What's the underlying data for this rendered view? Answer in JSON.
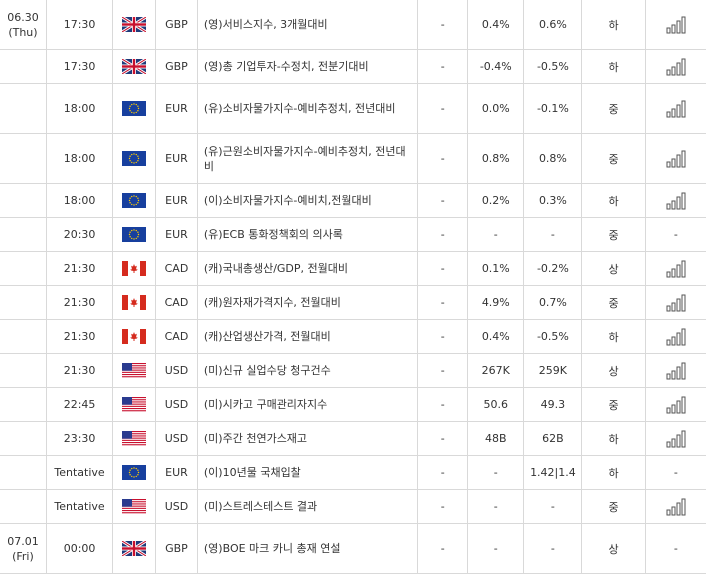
{
  "rows": [
    {
      "date": "06.30\n(Thu)",
      "time": "17:30",
      "flag": "uk-flag-icon",
      "currency": "GBP",
      "event": "(영)서비스지수, 3개월대비",
      "actual": "-",
      "forecast": "0.4%",
      "previous": "0.6%",
      "importance": "하",
      "chart": "bar-chart-icon",
      "h": 50
    },
    {
      "date": "",
      "time": "17:30",
      "flag": "uk-flag-icon",
      "currency": "GBP",
      "event": "(영)총 기업투자-수정치, 전분기대비",
      "actual": "-",
      "forecast": "-0.4%",
      "previous": "-0.5%",
      "importance": "하",
      "chart": "bar-chart-icon",
      "h": 34
    },
    {
      "date": "",
      "time": "18:00",
      "flag": "eu-flag-icon",
      "currency": "EUR",
      "event": "(유)소비자물가지수-예비추정치, 전년대비",
      "actual": "-",
      "forecast": "0.0%",
      "previous": "-0.1%",
      "importance": "중",
      "chart": "bar-chart-icon",
      "h": 50
    },
    {
      "date": "",
      "time": "18:00",
      "flag": "eu-flag-icon",
      "currency": "EUR",
      "event": "(유)근원소비자물가지수-예비추정치, 전년대비",
      "actual": "-",
      "forecast": "0.8%",
      "previous": "0.8%",
      "importance": "중",
      "chart": "bar-chart-icon",
      "h": 50
    },
    {
      "date": "",
      "time": "18:00",
      "flag": "eu-flag-icon",
      "currency": "EUR",
      "event": "(이)소비자물가지수-예비치,전월대비",
      "actual": "-",
      "forecast": "0.2%",
      "previous": "0.3%",
      "importance": "하",
      "chart": "bar-chart-icon",
      "h": 34
    },
    {
      "date": "",
      "time": "20:30",
      "flag": "eu-flag-icon",
      "currency": "EUR",
      "event": "(유)ECB 통화정책회의 의사록",
      "actual": "-",
      "forecast": "-",
      "previous": "-",
      "importance": "중",
      "chart": "-",
      "h": 34
    },
    {
      "date": "",
      "time": "21:30",
      "flag": "ca-flag-icon",
      "currency": "CAD",
      "event": "(캐)국내총생산/GDP, 전월대비",
      "actual": "-",
      "forecast": "0.1%",
      "previous": "-0.2%",
      "importance": "상",
      "chart": "bar-chart-icon",
      "h": 34
    },
    {
      "date": "",
      "time": "21:30",
      "flag": "ca-flag-icon",
      "currency": "CAD",
      "event": "(캐)원자재가격지수, 전월대비",
      "actual": "-",
      "forecast": "4.9%",
      "previous": "0.7%",
      "importance": "중",
      "chart": "bar-chart-icon",
      "h": 34
    },
    {
      "date": "",
      "time": "21:30",
      "flag": "ca-flag-icon",
      "currency": "CAD",
      "event": "(캐)산업생산가격, 전월대비",
      "actual": "-",
      "forecast": "0.4%",
      "previous": "-0.5%",
      "importance": "하",
      "chart": "bar-chart-icon",
      "h": 34
    },
    {
      "date": "",
      "time": "21:30",
      "flag": "us-flag-icon",
      "currency": "USD",
      "event": "(미)신규 실업수당 청구건수",
      "actual": "-",
      "forecast": "267K",
      "previous": "259K",
      "importance": "상",
      "chart": "bar-chart-icon",
      "h": 34
    },
    {
      "date": "",
      "time": "22:45",
      "flag": "us-flag-icon",
      "currency": "USD",
      "event": "(미)시카고 구매관리자지수",
      "actual": "-",
      "forecast": "50.6",
      "previous": "49.3",
      "importance": "중",
      "chart": "bar-chart-icon",
      "h": 34
    },
    {
      "date": "",
      "time": "23:30",
      "flag": "us-flag-icon",
      "currency": "USD",
      "event": "(미)주간 천연가스재고",
      "actual": "-",
      "forecast": "48B",
      "previous": "62B",
      "importance": "하",
      "chart": "bar-chart-icon",
      "h": 34
    },
    {
      "date": "",
      "time": "Tentative",
      "flag": "eu-flag-icon",
      "currency": "EUR",
      "event": "(이)10년물 국채입찰",
      "actual": "-",
      "forecast": "-",
      "previous": "1.42|1.4",
      "importance": "하",
      "chart": "-",
      "h": 34
    },
    {
      "date": "",
      "time": "Tentative",
      "flag": "us-flag-icon",
      "currency": "USD",
      "event": "(미)스트레스테스트 결과",
      "actual": "-",
      "forecast": "-",
      "previous": "-",
      "importance": "중",
      "chart": "bar-chart-icon",
      "h": 34
    },
    {
      "date": "07.01\n(Fri)",
      "time": "00:00",
      "flag": "uk-flag-icon",
      "currency": "GBP",
      "event": "(영)BOE 마크 카니 총재 연설",
      "actual": "-",
      "forecast": "-",
      "previous": "-",
      "importance": "상",
      "chart": "-",
      "h": 50
    }
  ],
  "colors": {
    "border": "#d9d9d9",
    "text": "#333333",
    "chart_icon": "#555555"
  }
}
